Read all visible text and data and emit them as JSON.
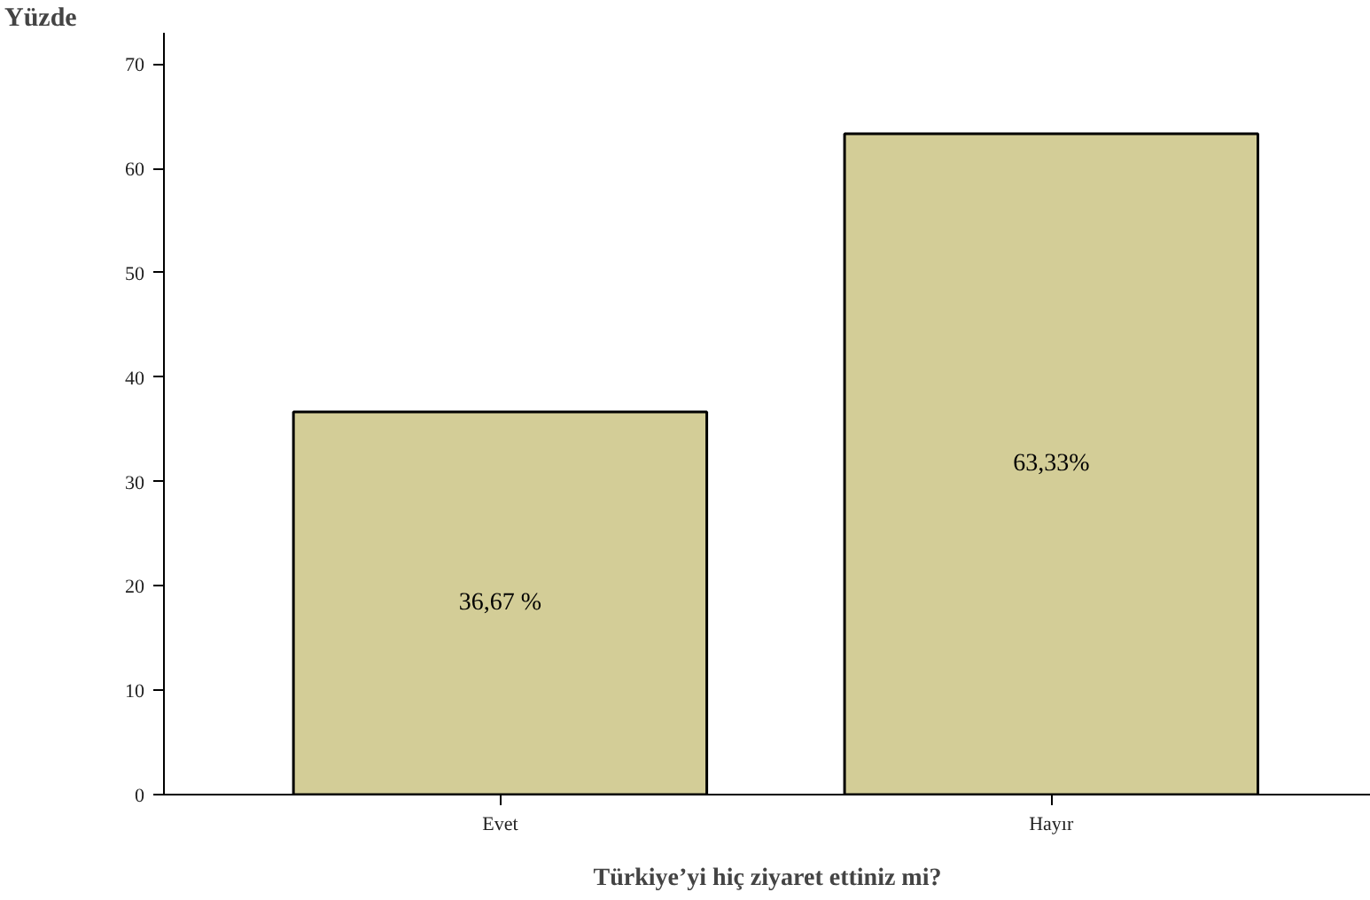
{
  "chart_data": {
    "type": "bar",
    "xlabel": "Türkiye’yi hiç ziyaret ettiniz mi?",
    "ylabel": "Yüzde",
    "categories": [
      "Evet",
      "Hayır"
    ],
    "values": [
      36.67,
      63.33
    ],
    "value_labels": [
      "36,67 %",
      "63,33%"
    ],
    "color": "#d3cd97",
    "ylim": [
      0,
      73
    ],
    "yticks": [
      0,
      10,
      20,
      30,
      40,
      50,
      60,
      70
    ],
    "grid": false
  }
}
